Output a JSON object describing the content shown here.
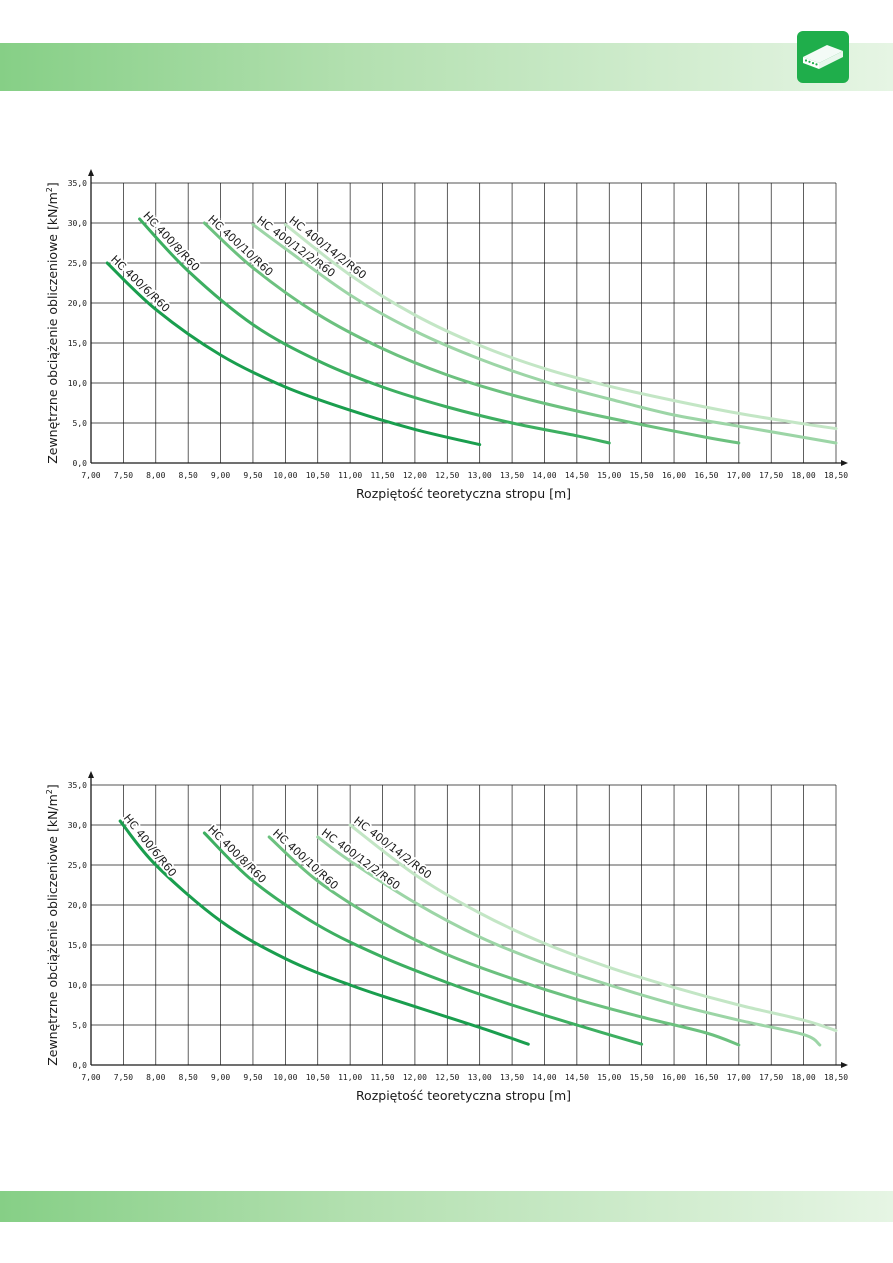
{
  "header": {
    "logo_icon": "hollow-core-slab-icon"
  },
  "colors": {
    "accent": "#1fae4b",
    "series": [
      "#1a9e4e",
      "#3daf61",
      "#6cc17f",
      "#9cd5a6",
      "#c3e6c5"
    ]
  },
  "chart_data": [
    {
      "type": "line",
      "xlabel": "Rozpiętość teoretyczna stropu [m]",
      "ylabel_main": "Zewnętrzne obciążenie obliczeniowe [kN/m",
      "ylabel_sup": "2",
      "ylabel_end": "]",
      "xlim": [
        7.0,
        18.5
      ],
      "ylim": [
        0,
        35
      ],
      "x_ticks": [
        "7,00",
        "7,50",
        "8,00",
        "8,50",
        "9,00",
        "9,50",
        "10,00",
        "10,50",
        "11,00",
        "11,50",
        "12,00",
        "12,50",
        "13,00",
        "13,50",
        "14,00",
        "14,50",
        "15,00",
        "15,50",
        "16,00",
        "16,50",
        "17,00",
        "17,50",
        "18,00",
        "18,50"
      ],
      "y_ticks": [
        "0,0",
        "5,0",
        "10,0",
        "15,0",
        "20,0",
        "25,0",
        "30,0",
        "35,0"
      ],
      "grid": true,
      "series": [
        {
          "name": "HC 400/6/R60",
          "x": [
            7.25,
            8.0,
            9.0,
            10.0,
            11.0,
            12.0,
            13.0
          ],
          "y": [
            25.0,
            19.2,
            13.5,
            9.5,
            6.6,
            4.2,
            2.3
          ]
        },
        {
          "name": "HC 400/8/R60",
          "x": [
            7.75,
            8.5,
            9.5,
            10.5,
            11.5,
            12.5,
            13.5,
            14.5,
            15.0
          ],
          "y": [
            30.5,
            24.0,
            17.3,
            12.8,
            9.5,
            7.0,
            5.0,
            3.4,
            2.5
          ]
        },
        {
          "name": "HC 400/10/R60",
          "x": [
            8.75,
            9.5,
            10.5,
            11.5,
            12.5,
            13.5,
            14.5,
            15.5,
            16.5,
            17.0
          ],
          "y": [
            30.0,
            24.4,
            18.6,
            14.3,
            11.0,
            8.5,
            6.5,
            4.8,
            3.2,
            2.5
          ]
        },
        {
          "name": "HC 400/12/2/R60",
          "x": [
            9.5,
            10.0,
            11.0,
            12.0,
            13.0,
            14.0,
            15.0,
            16.0,
            17.0,
            18.0,
            18.5
          ],
          "y": [
            29.8,
            26.8,
            21.0,
            16.5,
            13.0,
            10.2,
            8.0,
            6.0,
            4.6,
            3.2,
            2.5
          ]
        },
        {
          "name": "HC 400/14/2/R60",
          "x": [
            10.0,
            11.0,
            12.0,
            13.0,
            14.0,
            15.0,
            16.0,
            17.0,
            18.0,
            18.5
          ],
          "y": [
            29.8,
            23.5,
            18.5,
            14.7,
            11.8,
            9.6,
            7.8,
            6.2,
            4.9,
            4.3
          ]
        }
      ]
    },
    {
      "type": "line",
      "xlabel": "Rozpiętość teoretyczna stropu [m]",
      "ylabel_main": "Zewnętrzne obciążenie obliczeniowe [kN/m",
      "ylabel_sup": "2",
      "ylabel_end": "]",
      "xlim": [
        7.0,
        18.5
      ],
      "ylim": [
        0,
        35
      ],
      "x_ticks": [
        "7,00",
        "7,50",
        "8,00",
        "8,50",
        "9,00",
        "9,50",
        "10,00",
        "10,50",
        "11,00",
        "11,50",
        "12,00",
        "12,50",
        "13,00",
        "13,50",
        "14,00",
        "14,50",
        "15,00",
        "15,50",
        "16,00",
        "16,50",
        "17,00",
        "17,50",
        "18,00",
        "18,50"
      ],
      "y_ticks": [
        "0,0",
        "5,0",
        "10,0",
        "15,0",
        "20,0",
        "25,0",
        "30,0",
        "35,0"
      ],
      "grid": true,
      "series": [
        {
          "name": "HC 400/6/R60",
          "x": [
            7.45,
            8.0,
            9.0,
            10.0,
            11.0,
            12.0,
            13.0,
            13.75
          ],
          "y": [
            30.5,
            25.0,
            18.0,
            13.3,
            10.0,
            7.3,
            4.7,
            2.6
          ]
        },
        {
          "name": "HC 400/8/R60",
          "x": [
            8.75,
            9.5,
            10.5,
            11.5,
            12.5,
            13.5,
            14.5,
            15.5
          ],
          "y": [
            29.0,
            23.0,
            17.5,
            13.5,
            10.3,
            7.5,
            5.0,
            2.6
          ]
        },
        {
          "name": "HC 400/10/R60",
          "x": [
            9.75,
            10.5,
            11.5,
            12.5,
            13.5,
            14.5,
            15.5,
            16.5,
            17.0
          ],
          "y": [
            28.5,
            23.0,
            17.8,
            13.8,
            10.8,
            8.2,
            6.0,
            4.0,
            2.5
          ]
        },
        {
          "name": "HC 400/12/2/R60",
          "x": [
            10.5,
            11.0,
            12.0,
            13.0,
            14.0,
            15.0,
            16.0,
            17.0,
            18.0,
            18.25
          ],
          "y": [
            28.5,
            25.5,
            20.3,
            16.0,
            12.7,
            10.0,
            7.6,
            5.6,
            3.8,
            2.5
          ]
        },
        {
          "name": "HC 400/14/2/R60",
          "x": [
            11.0,
            12.0,
            13.0,
            14.0,
            15.0,
            16.0,
            17.0,
            18.0,
            18.5
          ],
          "y": [
            30.0,
            23.8,
            19.0,
            15.2,
            12.2,
            9.7,
            7.5,
            5.6,
            4.3
          ]
        }
      ]
    }
  ]
}
